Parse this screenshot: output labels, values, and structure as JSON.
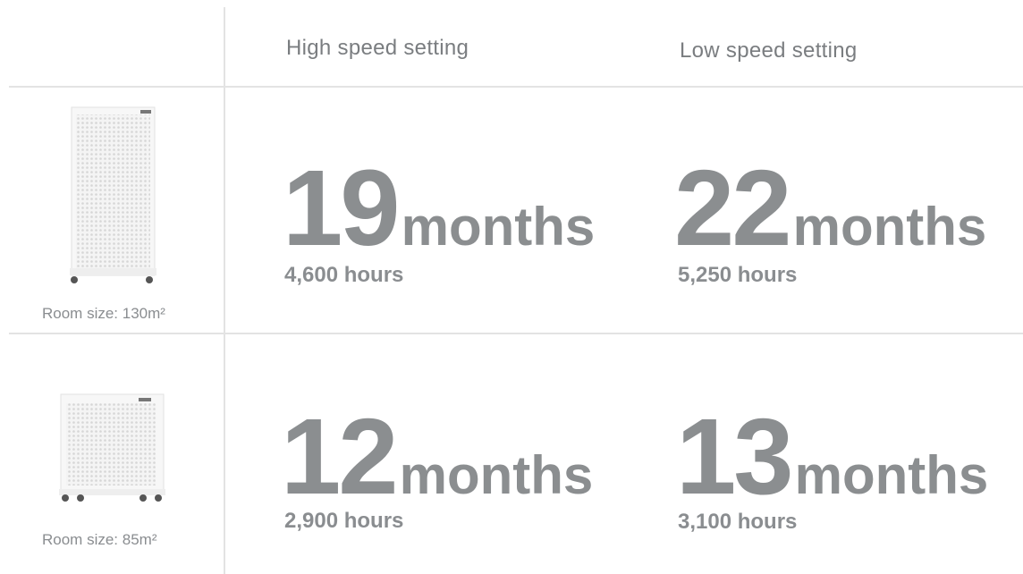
{
  "header": {
    "columns": [
      "High speed setting",
      "Low speed setting"
    ]
  },
  "rows": [
    {
      "room_size": "Room size: 130m²",
      "cells": [
        {
          "value": 19,
          "unit": "months",
          "hours": "4,600 hours"
        },
        {
          "value": 22,
          "unit": "months",
          "hours": "5,250 hours"
        }
      ]
    },
    {
      "room_size": "Room size: 85m²",
      "cells": [
        {
          "value": 12,
          "unit": "months",
          "hours": "2,900 hours"
        },
        {
          "value": 13,
          "unit": "months",
          "hours": "3,100 hours"
        }
      ]
    }
  ]
}
